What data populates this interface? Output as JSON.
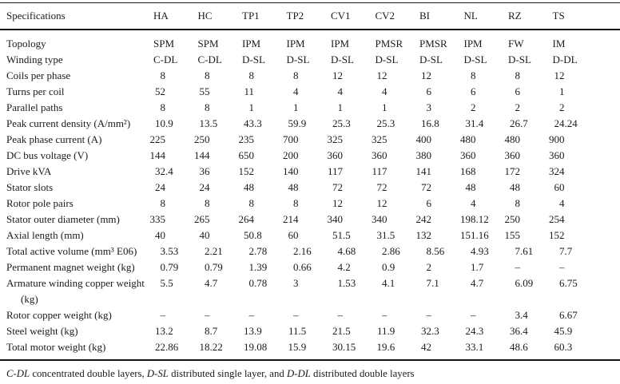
{
  "table": {
    "header": {
      "label": "Specifications",
      "columns": [
        "HA",
        "HC",
        "TP1",
        "TP2",
        "CV1",
        "CV2",
        "BI",
        "NL",
        "RZ",
        "TS"
      ]
    },
    "rows": [
      {
        "label": "Topology",
        "type": "text",
        "values": [
          "SPM",
          "SPM",
          "IPM",
          "IPM",
          "IPM",
          "PMSR",
          "PMSR",
          "IPM",
          "FW",
          "IM"
        ]
      },
      {
        "label": "Winding type",
        "type": "text",
        "values": [
          "C-DL",
          "C-DL",
          "D-SL",
          "D-SL",
          "D-SL",
          "D-SL",
          "D-SL",
          "D-SL",
          "D-SL",
          "D-DL"
        ]
      },
      {
        "label": "Coils per phase",
        "type": "num",
        "values": [
          "8",
          "8",
          "8",
          "8",
          "12",
          "12",
          "12",
          "8",
          "8",
          "12"
        ]
      },
      {
        "label": "Turns per coil",
        "type": "num",
        "values": [
          "52",
          "55",
          "11",
          "4",
          "4",
          "4",
          "6",
          "6",
          "6",
          "1"
        ]
      },
      {
        "label": "Parallel paths",
        "type": "num",
        "values": [
          "8",
          "8",
          "1",
          "1",
          "1",
          "1",
          "3",
          "2",
          "2",
          "2"
        ]
      },
      {
        "label": "Peak current density (A/mm²)",
        "type": "num",
        "values": [
          "10.9",
          "13.5",
          "43.3",
          "59.9",
          "25.3",
          "25.3",
          "16.8",
          "31.4",
          "26.7",
          "24.24"
        ]
      },
      {
        "label": "Peak phase current (A)",
        "type": "num",
        "values": [
          "225",
          "250",
          "235",
          "700",
          "325",
          "325",
          "400",
          "480",
          "480",
          "900"
        ]
      },
      {
        "label": "DC bus voltage (V)",
        "type": "num",
        "values": [
          "144",
          "144",
          "650",
          "200",
          "360",
          "360",
          "380",
          "360",
          "360",
          "360"
        ]
      },
      {
        "label": "Drive kVA",
        "type": "num",
        "values": [
          "32.4",
          "36",
          "152",
          "140",
          "117",
          "117",
          "141",
          "168",
          "172",
          "324"
        ]
      },
      {
        "label": "Stator slots",
        "type": "num",
        "values": [
          "24",
          "24",
          "48",
          "48",
          "72",
          "72",
          "72",
          "48",
          "48",
          "60"
        ]
      },
      {
        "label": "Rotor pole pairs",
        "type": "num",
        "values": [
          "8",
          "8",
          "8",
          "8",
          "12",
          "12",
          "6",
          "4",
          "8",
          "4"
        ]
      },
      {
        "label": "Stator outer diameter (mm)",
        "type": "num",
        "values": [
          "335",
          "265",
          "264",
          "214",
          "340",
          "340",
          "242",
          "198.12",
          "250",
          "254"
        ]
      },
      {
        "label": "Axial length (mm)",
        "type": "num",
        "values": [
          "40",
          "40",
          "50.8",
          "60",
          "51.5",
          "31.5",
          "132",
          "151.16",
          "155",
          "152"
        ]
      },
      {
        "label": "Total active volume (mm³ E06)",
        "type": "num",
        "values": [
          "3.53",
          "2.21",
          "2.78",
          "2.16",
          "4.68",
          "2.86",
          "8.56",
          "4.93",
          "7.61",
          "7.7"
        ]
      },
      {
        "label": "Permanent magnet weight (kg)",
        "type": "num",
        "values": [
          "0.79",
          "0.79",
          "1.39",
          "0.66",
          "4.2",
          "0.9",
          "2",
          "1.7",
          "–",
          "–"
        ]
      },
      {
        "label": "Armature winding copper weight (kg)",
        "type": "num",
        "values": [
          "5.5",
          "4.7",
          "0.78",
          "3",
          "1.53",
          "4.1",
          "7.1",
          "4.7",
          "6.09",
          "6.75"
        ]
      },
      {
        "label": "Rotor copper weight (kg)",
        "type": "num",
        "values": [
          "–",
          "–",
          "–",
          "–",
          "–",
          "–",
          "–",
          "–",
          "3.4",
          "6.67"
        ]
      },
      {
        "label": "Steel weight (kg)",
        "type": "num",
        "values": [
          "13.2",
          "8.7",
          "13.9",
          "11.5",
          "21.5",
          "11.9",
          "32.3",
          "24.3",
          "36.4",
          "45.9"
        ]
      },
      {
        "label": "Total motor weight (kg)",
        "type": "num",
        "values": [
          "22.86",
          "18.22",
          "19.08",
          "15.9",
          "30.15",
          "19.6",
          "42",
          "33.1",
          "48.6",
          "60.3"
        ]
      }
    ],
    "footnote_parts": [
      {
        "text": "C-DL",
        "italic": true
      },
      {
        "text": " concentrated double layers, ",
        "italic": false
      },
      {
        "text": "D-SL",
        "italic": true
      },
      {
        "text": " distributed single layer, and ",
        "italic": false
      },
      {
        "text": "D-DL",
        "italic": true
      },
      {
        "text": " distributed double layers",
        "italic": false
      }
    ]
  }
}
